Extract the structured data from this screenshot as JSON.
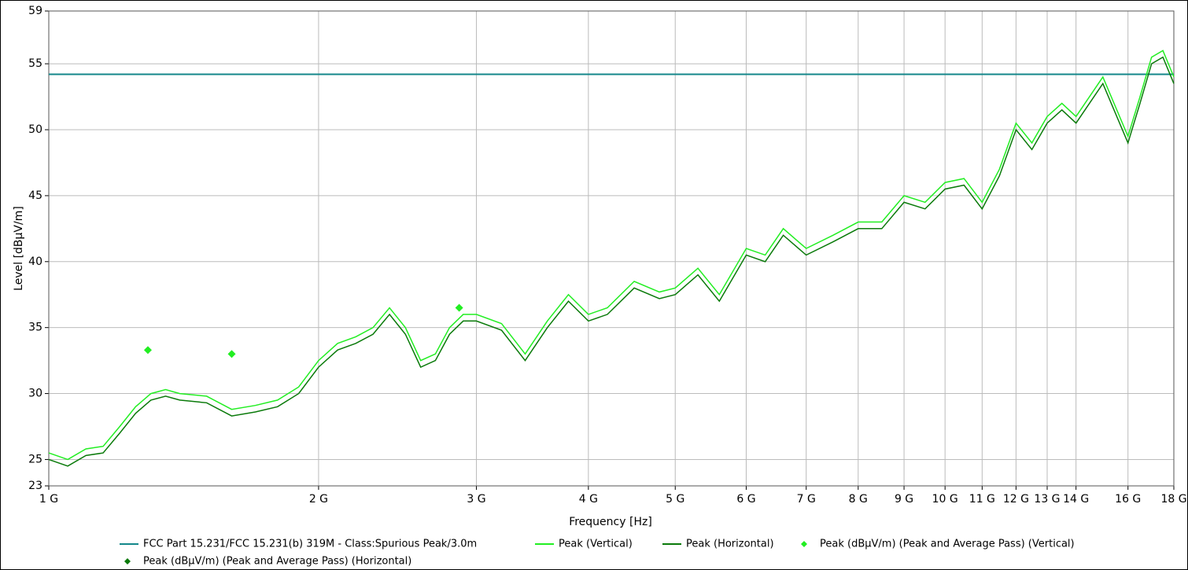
{
  "chart_data": {
    "type": "line",
    "x_label": "Frequency [Hz]",
    "y_label": "Level [dBµV/m]",
    "xscale": "log",
    "grid": true,
    "legend": "bottom",
    "xlim": [
      1000000000,
      18000000000
    ],
    "ylim": [
      23,
      59
    ],
    "yticks": [
      23,
      25,
      30,
      35,
      40,
      45,
      50,
      55,
      59
    ],
    "xticks": [
      {
        "value": 1000000000,
        "label": "1 G"
      },
      {
        "value": 2000000000,
        "label": "2 G"
      },
      {
        "value": 3000000000,
        "label": "3 G"
      },
      {
        "value": 4000000000,
        "label": "4 G"
      },
      {
        "value": 5000000000,
        "label": "5 G"
      },
      {
        "value": 6000000000,
        "label": "6 G"
      },
      {
        "value": 7000000000,
        "label": "7 G"
      },
      {
        "value": 8000000000,
        "label": "8 G"
      },
      {
        "value": 9000000000,
        "label": "9 G"
      },
      {
        "value": 10000000000,
        "label": "10 G"
      },
      {
        "value": 11000000000,
        "label": "11 G"
      },
      {
        "value": 12000000000,
        "label": "12 G"
      },
      {
        "value": 13000000000,
        "label": "13 G"
      },
      {
        "value": 14000000000,
        "label": "14 G"
      },
      {
        "value": 16000000000,
        "label": "16 G"
      },
      {
        "value": 18000000000,
        "label": "18 G"
      }
    ],
    "series": [
      {
        "name": "FCC Part 15.231/FCC 15.231(b) 319M - Class:Spurious Peak/3.0m",
        "color": "#13878a",
        "style": "line",
        "x": [
          1000000000,
          18000000000
        ],
        "values": [
          54.2,
          54.2
        ]
      },
      {
        "name": "Peak (Vertical)",
        "color": "#22ee22",
        "style": "line",
        "x": [
          1000000000,
          1050000000,
          1100000000,
          1150000000,
          1200000000,
          1250000000,
          1300000000,
          1350000000,
          1400000000,
          1500000000,
          1600000000,
          1700000000,
          1800000000,
          1900000000,
          2000000000,
          2100000000,
          2200000000,
          2300000000,
          2400000000,
          2500000000,
          2600000000,
          2700000000,
          2800000000,
          2900000000,
          3000000000,
          3200000000,
          3400000000,
          3600000000,
          3800000000,
          4000000000,
          4200000000,
          4500000000,
          4800000000,
          5000000000,
          5300000000,
          5600000000,
          6000000000,
          6300000000,
          6600000000,
          7000000000,
          7500000000,
          8000000000,
          8500000000,
          9000000000,
          9500000000,
          10000000000,
          10500000000,
          11000000000,
          11500000000,
          12000000000,
          12500000000,
          13000000000,
          13500000000,
          14000000000,
          15000000000,
          16000000000,
          16500000000,
          17000000000,
          17500000000,
          18000000000
        ],
        "values": [
          25.5,
          25,
          25.8,
          26,
          27.5,
          29,
          30,
          30.3,
          30,
          29.8,
          28.8,
          29.1,
          29.5,
          30.5,
          32.5,
          33.8,
          34.3,
          35,
          36.5,
          35,
          32.5,
          33,
          35,
          36,
          36,
          35.3,
          33,
          35.5,
          37.5,
          36,
          36.5,
          38.5,
          37.7,
          38,
          39.5,
          37.5,
          41,
          40.5,
          42.5,
          41,
          42,
          43,
          43,
          45,
          44.5,
          46,
          46.3,
          44.5,
          47,
          50.5,
          49,
          51,
          52,
          51,
          54,
          49.5,
          52.5,
          55.5,
          56,
          54
        ]
      },
      {
        "name": "Peak (Horizontal)",
        "color": "#0a7a0a",
        "style": "line",
        "x": [
          1000000000,
          1050000000,
          1100000000,
          1150000000,
          1200000000,
          1250000000,
          1300000000,
          1350000000,
          1400000000,
          1500000000,
          1600000000,
          1700000000,
          1800000000,
          1900000000,
          2000000000,
          2100000000,
          2200000000,
          2300000000,
          2400000000,
          2500000000,
          2600000000,
          2700000000,
          2800000000,
          2900000000,
          3000000000,
          3200000000,
          3400000000,
          3600000000,
          3800000000,
          4000000000,
          4200000000,
          4500000000,
          4800000000,
          5000000000,
          5300000000,
          5600000000,
          6000000000,
          6300000000,
          6600000000,
          7000000000,
          7500000000,
          8000000000,
          8500000000,
          9000000000,
          9500000000,
          10000000000,
          10500000000,
          11000000000,
          11500000000,
          12000000000,
          12500000000,
          13000000000,
          13500000000,
          14000000000,
          15000000000,
          16000000000,
          16500000000,
          17000000000,
          17500000000,
          18000000000
        ],
        "values": [
          25,
          24.5,
          25.3,
          25.5,
          27,
          28.5,
          29.5,
          29.8,
          29.5,
          29.3,
          28.3,
          28.6,
          29,
          30,
          32,
          33.3,
          33.8,
          34.5,
          36,
          34.5,
          32,
          32.5,
          34.5,
          35.5,
          35.5,
          34.8,
          32.5,
          35,
          37,
          35.5,
          36,
          38,
          37.2,
          37.5,
          39,
          37,
          40.5,
          40,
          42,
          40.5,
          41.5,
          42.5,
          42.5,
          44.5,
          44,
          45.5,
          45.8,
          44,
          46.5,
          50,
          48.5,
          50.5,
          51.5,
          50.5,
          53.5,
          49,
          52,
          55,
          55.5,
          53.5
        ]
      },
      {
        "name": "Peak (dBµV/m) (Peak and Average Pass) (Vertical)",
        "color": "#22ee22",
        "style": "marker",
        "x": [
          1290000000,
          1600000000,
          2870000000
        ],
        "values": [
          33.3,
          33,
          36.5
        ]
      },
      {
        "name": "Peak (dBµV/m) (Peak and Average Pass) (Horizontal)",
        "color": "#0a7a0a",
        "style": "marker",
        "x": [],
        "values": []
      }
    ]
  }
}
